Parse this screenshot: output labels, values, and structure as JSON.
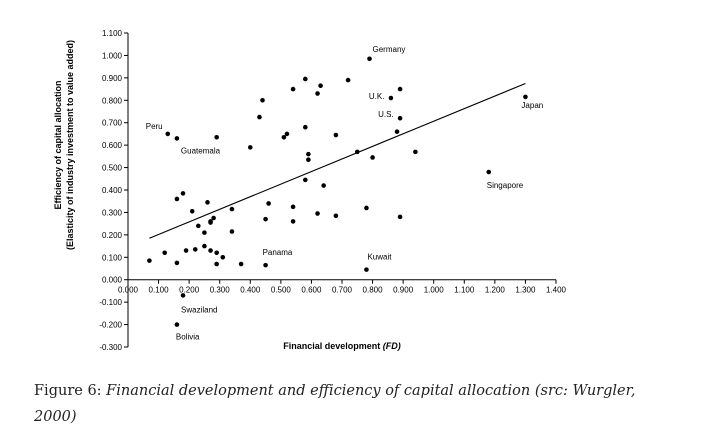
{
  "chart_data": {
    "type": "scatter",
    "xlabel": "Financial development",
    "xlabel_var": "(FD)",
    "ylabel_line1": "Efficiency of capital allocation",
    "ylabel_line2": "(Elasticity of industry investment to value added)",
    "xlim": [
      0,
      1.4
    ],
    "ylim": [
      -0.3,
      1.1
    ],
    "x_ticks": [
      0,
      0.1,
      0.2,
      0.3,
      0.4,
      0.5,
      0.6,
      0.7,
      0.8,
      0.9,
      1.0,
      1.1,
      1.2,
      1.3,
      1.4
    ],
    "x_tick_labels": [
      "0.000",
      "0.100",
      "0.200",
      "0.300",
      "0.400",
      "0.500",
      "0.600",
      "0.700",
      "0.800",
      "0.900",
      "1.000",
      "1.100",
      "1.200",
      "1.300",
      "1.400"
    ],
    "y_ticks": [
      -0.3,
      -0.2,
      -0.1,
      0,
      0.1,
      0.2,
      0.3,
      0.4,
      0.5,
      0.6,
      0.7,
      0.8,
      0.9,
      1.0,
      1.1
    ],
    "y_tick_labels": [
      "-0.300",
      "-0.200",
      "-0.100",
      "0.000",
      "0.100",
      "0.200",
      "0.300",
      "0.400",
      "0.500",
      "0.600",
      "0.700",
      "0.800",
      "0.900",
      "1.000",
      "1.100"
    ],
    "grid": false,
    "points": [
      {
        "x": 0.79,
        "y": 0.985,
        "label": "Germany"
      },
      {
        "x": 1.3,
        "y": 0.815,
        "label": "Japan"
      },
      {
        "x": 0.86,
        "y": 0.81,
        "label": "U.K."
      },
      {
        "x": 0.89,
        "y": 0.72,
        "label": "U.S."
      },
      {
        "x": 0.13,
        "y": 0.65,
        "label": "Peru"
      },
      {
        "x": 0.16,
        "y": 0.63,
        "label": "Guatemala"
      },
      {
        "x": 1.18,
        "y": 0.48,
        "label": "Singapore"
      },
      {
        "x": 0.45,
        "y": 0.065,
        "label": "Panama"
      },
      {
        "x": 0.78,
        "y": 0.045,
        "label": "Kuwait"
      },
      {
        "x": 0.18,
        "y": -0.07,
        "label": "Swaziland"
      },
      {
        "x": 0.16,
        "y": -0.2,
        "label": "Bolivia"
      },
      {
        "x": 0.58,
        "y": 0.895,
        "label": ""
      },
      {
        "x": 0.72,
        "y": 0.89,
        "label": ""
      },
      {
        "x": 0.89,
        "y": 0.85,
        "label": ""
      },
      {
        "x": 0.63,
        "y": 0.865,
        "label": ""
      },
      {
        "x": 0.54,
        "y": 0.85,
        "label": ""
      },
      {
        "x": 0.62,
        "y": 0.83,
        "label": ""
      },
      {
        "x": 0.44,
        "y": 0.8,
        "label": ""
      },
      {
        "x": 0.43,
        "y": 0.725,
        "label": ""
      },
      {
        "x": 0.58,
        "y": 0.68,
        "label": ""
      },
      {
        "x": 0.88,
        "y": 0.66,
        "label": ""
      },
      {
        "x": 0.52,
        "y": 0.65,
        "label": ""
      },
      {
        "x": 0.68,
        "y": 0.645,
        "label": ""
      },
      {
        "x": 0.51,
        "y": 0.635,
        "label": ""
      },
      {
        "x": 0.29,
        "y": 0.635,
        "label": ""
      },
      {
        "x": 0.4,
        "y": 0.59,
        "label": ""
      },
      {
        "x": 0.75,
        "y": 0.57,
        "label": ""
      },
      {
        "x": 0.94,
        "y": 0.57,
        "label": ""
      },
      {
        "x": 0.59,
        "y": 0.56,
        "label": ""
      },
      {
        "x": 0.8,
        "y": 0.545,
        "label": ""
      },
      {
        "x": 0.59,
        "y": 0.535,
        "label": ""
      },
      {
        "x": 0.58,
        "y": 0.445,
        "label": ""
      },
      {
        "x": 0.64,
        "y": 0.42,
        "label": ""
      },
      {
        "x": 0.18,
        "y": 0.385,
        "label": ""
      },
      {
        "x": 0.16,
        "y": 0.36,
        "label": ""
      },
      {
        "x": 0.26,
        "y": 0.345,
        "label": ""
      },
      {
        "x": 0.46,
        "y": 0.34,
        "label": ""
      },
      {
        "x": 0.54,
        "y": 0.325,
        "label": ""
      },
      {
        "x": 0.78,
        "y": 0.32,
        "label": ""
      },
      {
        "x": 0.34,
        "y": 0.315,
        "label": ""
      },
      {
        "x": 0.21,
        "y": 0.305,
        "label": ""
      },
      {
        "x": 0.62,
        "y": 0.295,
        "label": ""
      },
      {
        "x": 0.68,
        "y": 0.285,
        "label": ""
      },
      {
        "x": 0.89,
        "y": 0.28,
        "label": ""
      },
      {
        "x": 0.28,
        "y": 0.275,
        "label": ""
      },
      {
        "x": 0.45,
        "y": 0.27,
        "label": ""
      },
      {
        "x": 0.27,
        "y": 0.26,
        "label": ""
      },
      {
        "x": 0.54,
        "y": 0.26,
        "label": ""
      },
      {
        "x": 0.27,
        "y": 0.255,
        "label": ""
      },
      {
        "x": 0.23,
        "y": 0.24,
        "label": ""
      },
      {
        "x": 0.34,
        "y": 0.215,
        "label": ""
      },
      {
        "x": 0.25,
        "y": 0.21,
        "label": ""
      },
      {
        "x": 0.25,
        "y": 0.15,
        "label": ""
      },
      {
        "x": 0.22,
        "y": 0.135,
        "label": ""
      },
      {
        "x": 0.19,
        "y": 0.13,
        "label": ""
      },
      {
        "x": 0.27,
        "y": 0.13,
        "label": ""
      },
      {
        "x": 0.29,
        "y": 0.12,
        "label": ""
      },
      {
        "x": 0.12,
        "y": 0.12,
        "label": ""
      },
      {
        "x": 0.31,
        "y": 0.1,
        "label": ""
      },
      {
        "x": 0.07,
        "y": 0.085,
        "label": ""
      },
      {
        "x": 0.16,
        "y": 0.075,
        "label": ""
      },
      {
        "x": 0.29,
        "y": 0.07,
        "label": ""
      },
      {
        "x": 0.37,
        "y": 0.07,
        "label": ""
      }
    ],
    "trendline": {
      "x": [
        0.07,
        1.3
      ],
      "y": [
        0.185,
        0.875
      ]
    }
  },
  "caption": {
    "figure_label": "Figure 6:",
    "text": "Financial development and efficiency of capital allocation (src: Wurgler, 2000)"
  }
}
